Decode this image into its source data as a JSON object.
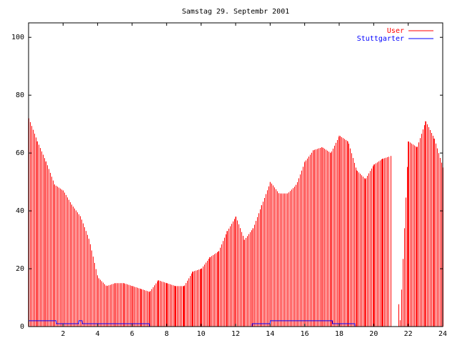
{
  "chart_data": {
    "type": "bar",
    "title": "Samstag 29. Septembr 2001",
    "xlabel": "",
    "ylabel": "",
    "xlim": [
      0,
      24
    ],
    "ylim": [
      0,
      105
    ],
    "xticks": [
      "2",
      "4",
      "6",
      "8",
      "10",
      "12",
      "14",
      "16",
      "18",
      "20",
      "22",
      "24"
    ],
    "yticks": [
      "0",
      "20",
      "40",
      "60",
      "80",
      "100"
    ],
    "grid": false,
    "legend_position": "top-right",
    "series": [
      {
        "name": "User",
        "color": "#ff0000",
        "style": "impulses",
        "x": [
          0,
          0.5,
          1,
          1.5,
          2,
          2.5,
          3,
          3.5,
          4,
          4.5,
          5,
          5.5,
          6,
          6.5,
          7,
          7.5,
          8,
          8.5,
          9,
          9.5,
          10,
          10.5,
          11,
          11.5,
          12,
          12.5,
          13,
          13.5,
          14,
          14.5,
          15,
          15.5,
          16,
          16.5,
          17,
          17.5,
          18,
          18.5,
          19,
          19.5,
          20,
          20.5,
          21,
          21.5,
          22,
          22.5,
          23,
          23.5,
          24
        ],
        "values": [
          72,
          64,
          57,
          49,
          47,
          42,
          38,
          30,
          17,
          14,
          15,
          15,
          14,
          13,
          12,
          16,
          15,
          14,
          14,
          19,
          20,
          24,
          26,
          33,
          38,
          30,
          34,
          42,
          50,
          46,
          46,
          49,
          57,
          61,
          62,
          60,
          66,
          64,
          54,
          51,
          56,
          58,
          59,
          0,
          64,
          62,
          71,
          65,
          55
        ]
      },
      {
        "name": "Stuttgarter",
        "color": "#0000ff",
        "style": "line",
        "x": [
          0,
          1.6,
          1.61,
          2.9,
          2.91,
          3.1,
          3.11,
          7.0,
          7.01,
          12.95,
          12.96,
          14.0,
          14.01,
          17.6,
          17.61,
          18.9,
          18.91,
          24
        ],
        "values": [
          2,
          2,
          1,
          1,
          2,
          2,
          1,
          1,
          0,
          0,
          1,
          1,
          2,
          2,
          1,
          1,
          0,
          0
        ]
      }
    ]
  }
}
